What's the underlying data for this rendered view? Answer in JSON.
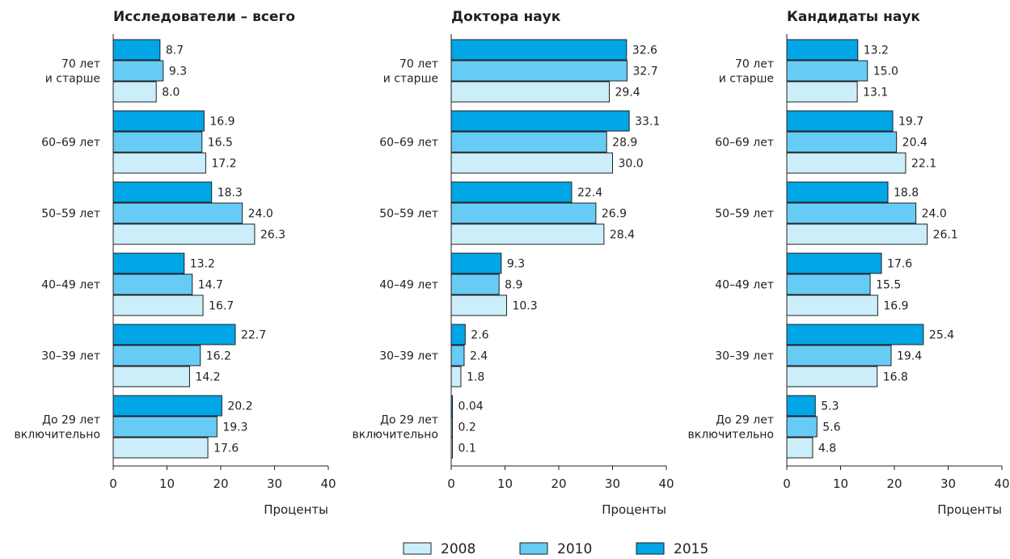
{
  "chart_data": {
    "type": "bar",
    "orientation": "horizontal",
    "categories": [
      "70 лет и старше",
      "60–69 лет",
      "50–59 лет",
      "40–49 лет",
      "30–39 лет",
      "До 29 лет включительно"
    ],
    "category_lines": [
      [
        "70 лет",
        "и старше"
      ],
      [
        "60–69 лет"
      ],
      [
        "50–59 лет"
      ],
      [
        "40–49 лет"
      ],
      [
        "30–39 лет"
      ],
      [
        "До 29 лет",
        "включительно"
      ]
    ],
    "legend": {
      "position": "bottom-center",
      "entries": [
        "2008",
        "2010",
        "2015"
      ]
    },
    "colors": {
      "2008": "#cceefb",
      "2010": "#66ccf5",
      "2015": "#00a6e6",
      "edge": "#231f20",
      "text": "#231f20"
    },
    "grid": false,
    "panels": [
      {
        "title": "Исследователи – всего",
        "xlabel": "Проценты",
        "xlim": [
          0,
          40
        ],
        "xticks": [
          0,
          10,
          20,
          30,
          40
        ],
        "series": [
          {
            "name": "2015",
            "values": [
              8.7,
              16.9,
              18.3,
              13.2,
              22.7,
              20.2
            ],
            "labels": [
              "8.7",
              "16.9",
              "18.3",
              "13.2",
              "22.7",
              "20.2"
            ]
          },
          {
            "name": "2010",
            "values": [
              9.3,
              16.5,
              24.0,
              14.7,
              16.2,
              19.3
            ],
            "labels": [
              "9.3",
              "16.5",
              "24.0",
              "14.7",
              "16.2",
              "19.3"
            ]
          },
          {
            "name": "2008",
            "values": [
              8.0,
              17.2,
              26.3,
              16.7,
              14.2,
              17.6
            ],
            "labels": [
              "8.0",
              "17.2",
              "26.3",
              "16.7",
              "14.2",
              "17.6"
            ]
          }
        ]
      },
      {
        "title": "Доктора наук",
        "xlabel": "Проценты",
        "xlim": [
          0,
          40
        ],
        "xticks": [
          0,
          10,
          20,
          30,
          40
        ],
        "series": [
          {
            "name": "2015",
            "values": [
              32.6,
              33.1,
              22.4,
              9.3,
              2.6,
              0.04
            ],
            "labels": [
              "32.6",
              "33.1",
              "22.4",
              "9.3",
              "2.6",
              "0.04"
            ]
          },
          {
            "name": "2010",
            "values": [
              32.7,
              28.9,
              26.9,
              8.9,
              2.4,
              0.2
            ],
            "labels": [
              "32.7",
              "28.9",
              "26.9",
              "8.9",
              "2.4",
              "0.2"
            ]
          },
          {
            "name": "2008",
            "values": [
              29.4,
              30.0,
              28.4,
              10.3,
              1.8,
              0.1
            ],
            "labels": [
              "29.4",
              "30.0",
              "28.4",
              "10.3",
              "1.8",
              "0.1"
            ]
          }
        ]
      },
      {
        "title": "Кандидаты наук",
        "xlabel": "Проценты",
        "xlim": [
          0,
          40
        ],
        "xticks": [
          0,
          10,
          20,
          30,
          40
        ],
        "series": [
          {
            "name": "2015",
            "values": [
              13.2,
              19.7,
              18.8,
              17.6,
              25.4,
              5.3
            ],
            "labels": [
              "13.2",
              "19.7",
              "18.8",
              "17.6",
              "25.4",
              "5.3"
            ]
          },
          {
            "name": "2010",
            "values": [
              15.0,
              20.4,
              24.0,
              15.5,
              19.4,
              5.6
            ],
            "labels": [
              "15.0",
              "20.4",
              "24.0",
              "15.5",
              "19.4",
              "5.6"
            ]
          },
          {
            "name": "2008",
            "values": [
              13.1,
              22.1,
              26.1,
              16.9,
              16.8,
              4.8
            ],
            "labels": [
              "13.1",
              "22.1",
              "26.1",
              "16.9",
              "16.8",
              "4.8"
            ]
          }
        ]
      }
    ]
  }
}
